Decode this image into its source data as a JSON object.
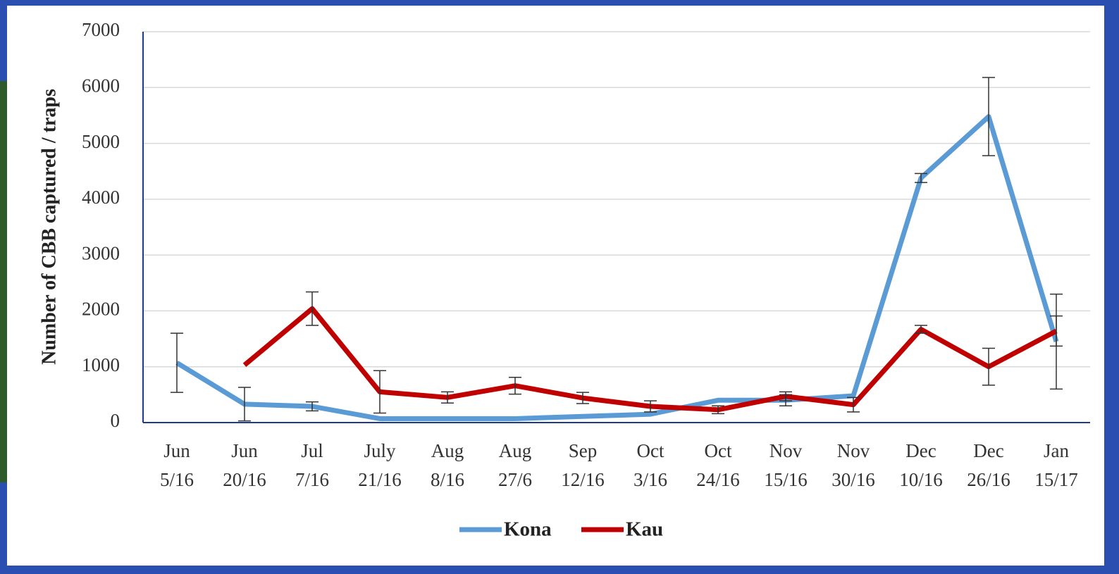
{
  "chart_data": {
    "type": "line",
    "y_label": "Number of CBB captured / traps",
    "categories": [
      [
        "Jun",
        "5/16"
      ],
      [
        "Jun",
        "20/16"
      ],
      [
        "Jul",
        "7/16"
      ],
      [
        "July",
        "21/16"
      ],
      [
        "Aug",
        "8/16"
      ],
      [
        "Aug",
        "27/6"
      ],
      [
        "Sep",
        "12/16"
      ],
      [
        "Oct",
        "3/16"
      ],
      [
        "Oct",
        "24/16"
      ],
      [
        "Nov",
        "15/16"
      ],
      [
        "Nov",
        "30/16"
      ],
      [
        "Dec",
        "10/16"
      ],
      [
        "Dec",
        "26/16"
      ],
      [
        "Jan",
        "15/17"
      ]
    ],
    "series": [
      {
        "name": "Kona",
        "color": "#5b9bd5",
        "values": [
          1070,
          330,
          290,
          70,
          70,
          70,
          110,
          150,
          400,
          400,
          480,
          4380,
          5480,
          1450
        ],
        "errors": [
          530,
          300,
          80,
          null,
          null,
          null,
          null,
          null,
          null,
          100,
          null,
          80,
          700,
          850
        ]
      },
      {
        "name": "Kau",
        "color": "#c00000",
        "values": [
          null,
          1030,
          2040,
          550,
          450,
          660,
          440,
          290,
          230,
          470,
          320,
          1670,
          1000,
          1640
        ],
        "errors": [
          null,
          null,
          300,
          380,
          100,
          150,
          100,
          100,
          70,
          80,
          130,
          70,
          330,
          270
        ]
      }
    ],
    "ylim": [
      0,
      7000
    ],
    "yticks": [
      0,
      1000,
      2000,
      3000,
      4000,
      5000,
      6000,
      7000
    ],
    "grid": true
  }
}
